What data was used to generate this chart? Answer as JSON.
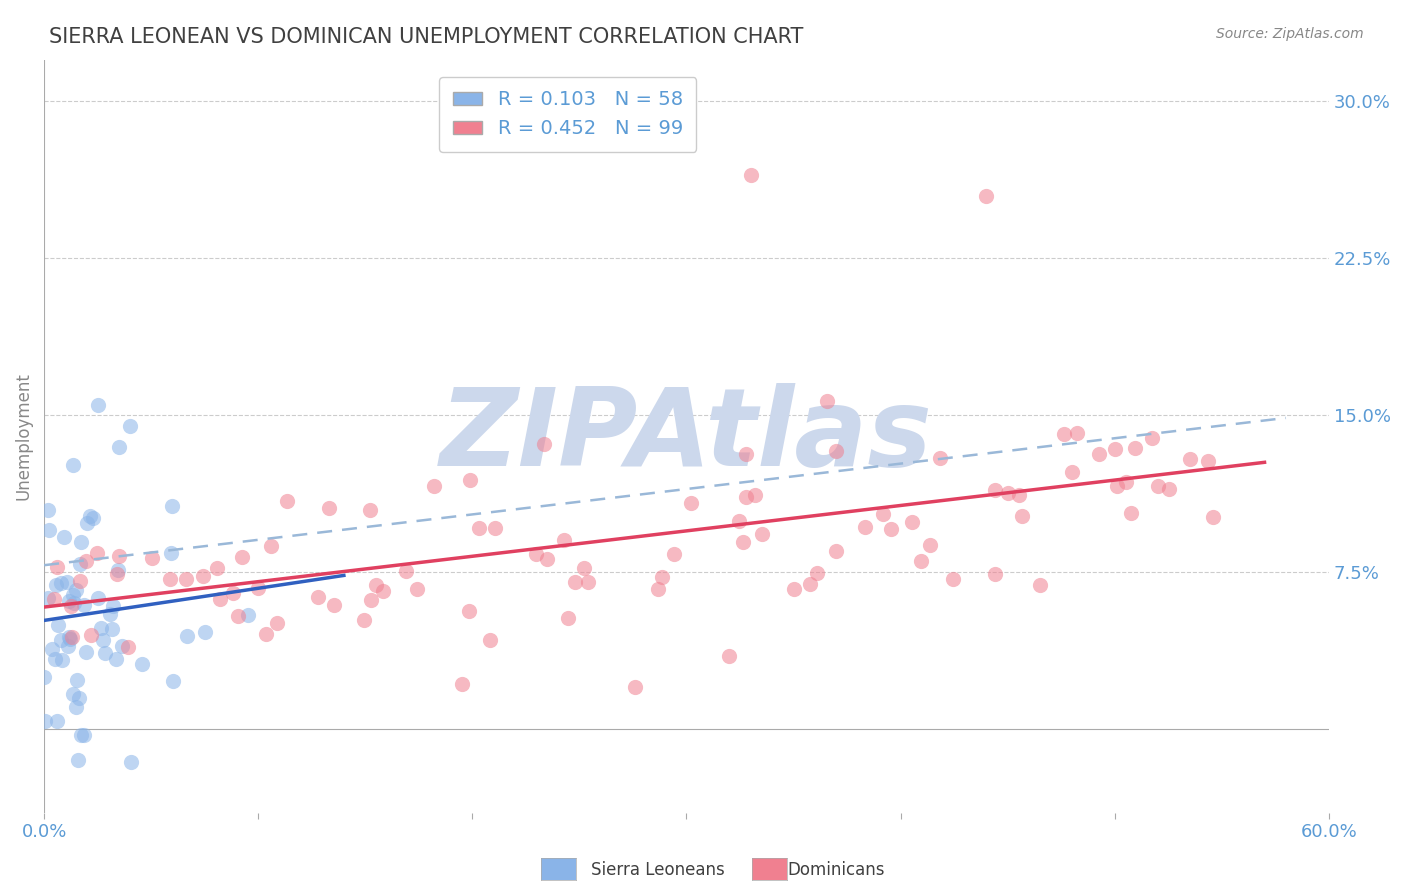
{
  "title": "SIERRA LEONEAN VS DOMINICAN UNEMPLOYMENT CORRELATION CHART",
  "source": "Source: ZipAtlas.com",
  "ylabel": "Unemployment",
  "xlim": [
    0.0,
    0.6
  ],
  "ylim": [
    -0.04,
    0.32
  ],
  "xticks": [
    0.0,
    0.1,
    0.2,
    0.3,
    0.4,
    0.5,
    0.6
  ],
  "yticks": [
    0.0,
    0.075,
    0.15,
    0.225,
    0.3
  ],
  "ytick_labels": [
    "",
    "7.5%",
    "15.0%",
    "22.5%",
    "30.0%"
  ],
  "xtick_labels": [
    "0.0%",
    "",
    "",
    "",
    "",
    "",
    "60.0%"
  ],
  "sierra_R": 0.103,
  "sierra_N": 58,
  "dominican_R": 0.452,
  "dominican_N": 99,
  "sierra_color": "#8ab4e8",
  "dominican_color": "#f08090",
  "sierra_trend_color": "#3060c0",
  "dominican_trend_color": "#e04060",
  "dominican_dash_color": "#9ab8d8",
  "watermark": "ZIPAtlas",
  "watermark_color": "#ccd8ec",
  "grid_color": "#cccccc",
  "background_color": "#ffffff",
  "title_color": "#404040",
  "tick_label_color": "#5b9bd5",
  "legend_border_color": "#cccccc"
}
